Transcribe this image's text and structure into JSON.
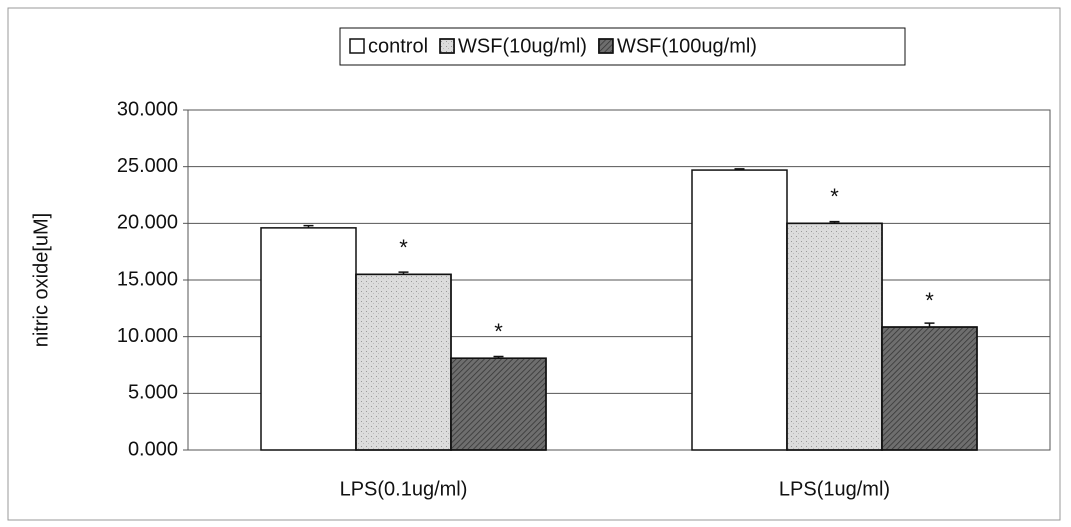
{
  "chart_data": {
    "type": "bar",
    "y_label": "nitric oxide[uM]",
    "categories": [
      "LPS(0.1ug/ml)",
      "LPS(1ug/ml)"
    ],
    "series": [
      {
        "name": "control",
        "color": "#ffffff",
        "values": [
          19.6,
          24.7
        ],
        "errors": [
          0.2,
          0.1
        ]
      },
      {
        "name": "WSF(10ug/ml)",
        "color": "#dcdcdc",
        "values": [
          15.5,
          20.0
        ],
        "errors": [
          0.2,
          0.15
        ],
        "annotations": [
          "*",
          "*"
        ]
      },
      {
        "name": "WSF(100ug/ml)",
        "color": "#6e6e6e",
        "values": [
          8.1,
          10.85
        ],
        "errors": [
          0.15,
          0.35
        ],
        "annotations": [
          "*",
          "*"
        ]
      }
    ],
    "ylim": [
      0,
      30
    ],
    "yticks": [
      {
        "value": 0,
        "label": "0.000"
      },
      {
        "value": 5,
        "label": "5.000"
      },
      {
        "value": 10,
        "label": "10.000"
      },
      {
        "value": 15,
        "label": "15.000"
      },
      {
        "value": 20,
        "label": "20.000"
      },
      {
        "value": 25,
        "label": "25.000"
      },
      {
        "value": 30,
        "label": "30.000"
      }
    ],
    "grid": true,
    "legend": "top"
  }
}
